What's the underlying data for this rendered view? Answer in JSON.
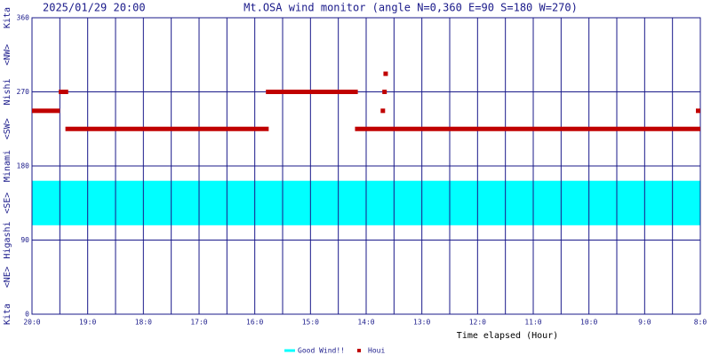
{
  "chart_data": {
    "type": "wind",
    "date": "2025/01/29 20:00",
    "title": "Mt.OSA wind monitor (angle N=0,360 E=90 S=180 W=270)",
    "x_label": "Time elapsed (Hour)",
    "xlim": [
      20,
      8
    ],
    "xticks": [
      {
        "value": 20,
        "label": "20:0"
      },
      {
        "value": 19,
        "label": "19:0"
      },
      {
        "value": 18,
        "label": "18:0"
      },
      {
        "value": 17,
        "label": "17:0"
      },
      {
        "value": 16,
        "label": "16:0"
      },
      {
        "value": 15,
        "label": "15:0"
      },
      {
        "value": 14,
        "label": "14:0"
      },
      {
        "value": 13,
        "label": "13:0"
      },
      {
        "value": 12,
        "label": "12:0"
      },
      {
        "value": 11,
        "label": "11:0"
      },
      {
        "value": 10,
        "label": "10:0"
      },
      {
        "value": 9,
        "label": "9:0"
      },
      {
        "value": 8,
        "label": "8:0"
      }
    ],
    "xminor_ticks": [
      19.5,
      18.5,
      17.5,
      16.5,
      15.5,
      14.5,
      13.5,
      12.5,
      11.5,
      10.5,
      9.5,
      8.5
    ],
    "ylim": [
      0,
      360
    ],
    "yticks": [
      0,
      90,
      180,
      270,
      360
    ],
    "direction_labels": [
      {
        "value": 0,
        "label": "Kita"
      },
      {
        "value": 45,
        "label": "<NE>"
      },
      {
        "value": 90,
        "label": "Higashi"
      },
      {
        "value": 135,
        "label": "<SE>"
      },
      {
        "value": 180,
        "label": "Minami"
      },
      {
        "value": 225,
        "label": "<SW>"
      },
      {
        "value": 270,
        "label": "Nishi"
      },
      {
        "value": 315,
        "label": "<NW>"
      },
      {
        "value": 360,
        "label": "Kita"
      }
    ],
    "band": {
      "name": "Good Wind!!",
      "color": "#00ffff",
      "range": [
        108,
        162
      ]
    },
    "houi": {
      "name": "Houi",
      "color": "#c00000",
      "segments": [
        {
          "from": 20.0,
          "to": 19.5,
          "value": 247
        },
        {
          "from": 19.52,
          "to": 19.35,
          "value": 270
        },
        {
          "from": 19.4,
          "to": 15.75,
          "value": 225
        },
        {
          "from": 15.8,
          "to": 14.15,
          "value": 270
        },
        {
          "from": 14.2,
          "to": 8.0,
          "value": 225
        }
      ],
      "points": [
        {
          "x": 13.7,
          "value": 247
        },
        {
          "x": 13.67,
          "value": 270
        },
        {
          "x": 13.65,
          "value": 292
        },
        {
          "x": 8.0,
          "value": 247
        }
      ]
    }
  }
}
